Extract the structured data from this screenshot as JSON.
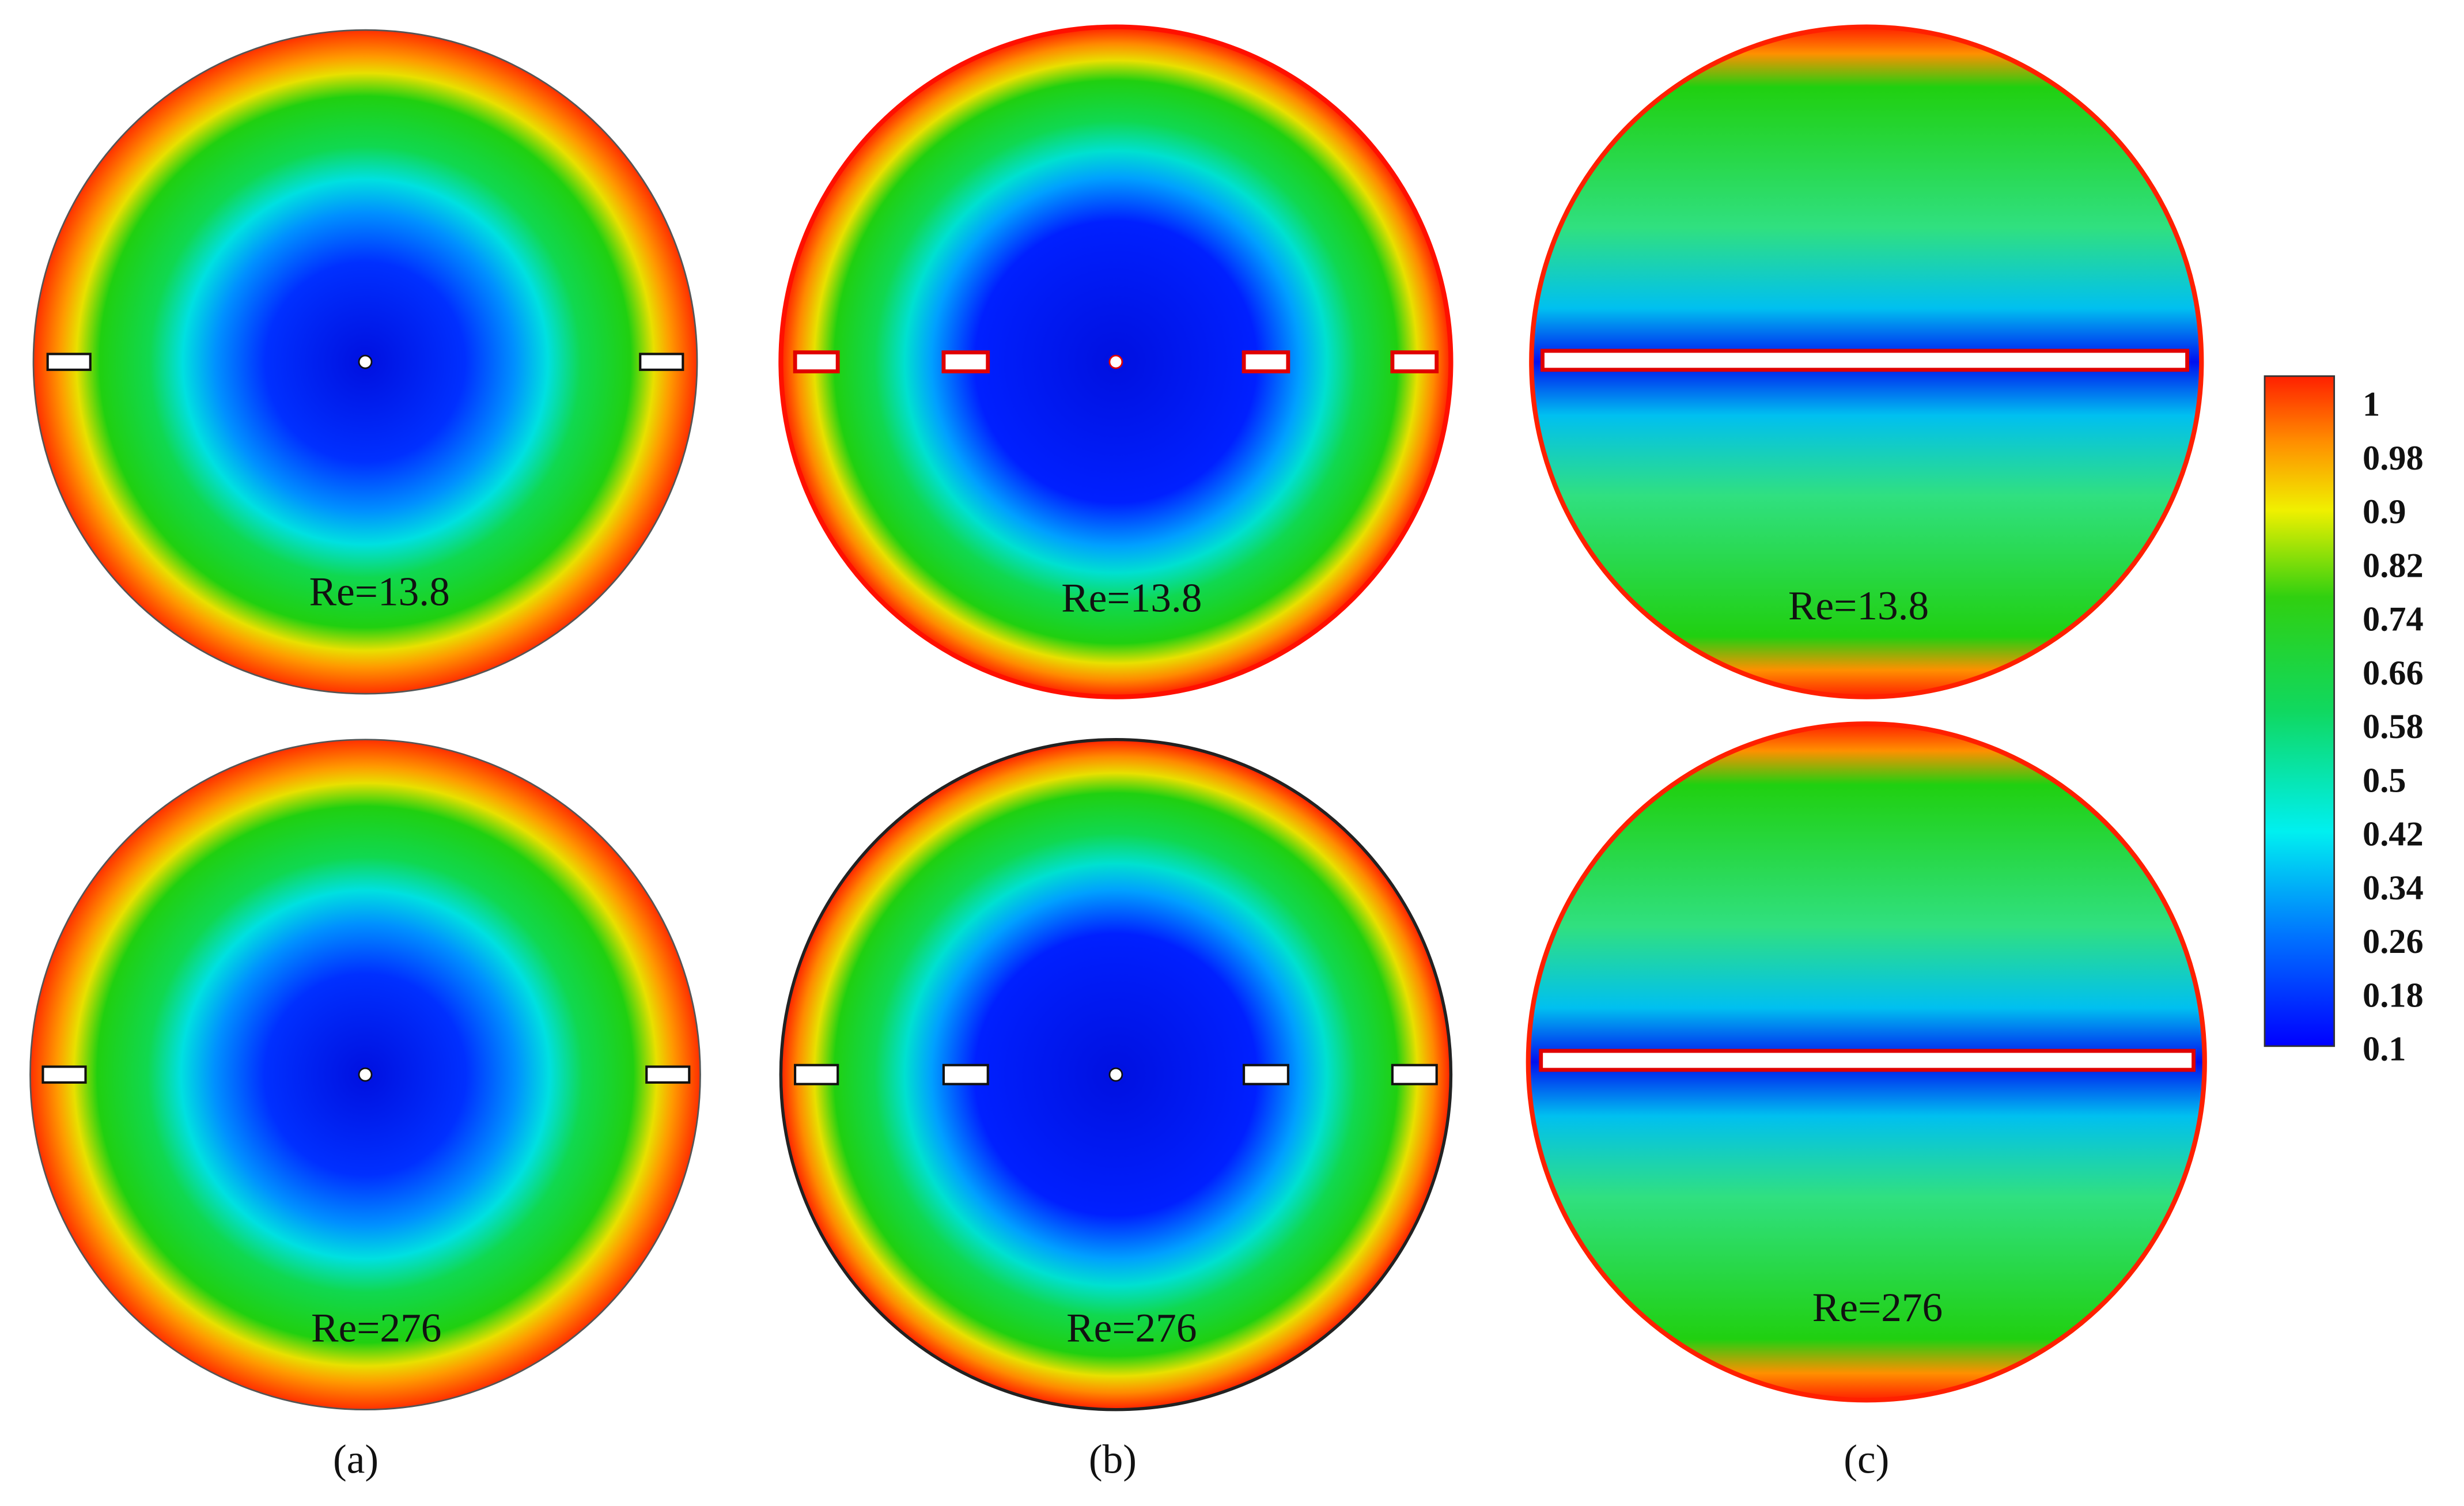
{
  "panels": [
    {
      "caption": "(a)",
      "top_label": "Re=13.8",
      "bottom_label": "Re=276"
    },
    {
      "caption": "(b)",
      "top_label": "Re=13.8",
      "bottom_label": "Re=276"
    },
    {
      "caption": "(c)",
      "top_label": "Re=13.8",
      "bottom_label": "Re=276"
    }
  ],
  "colorbar": {
    "labels": [
      "1",
      "0.98",
      "0.9",
      "0.82",
      "0.74",
      "0.66",
      "0.58",
      "0.5",
      "0.42",
      "0.34",
      "0.26",
      "0.18",
      "0.1"
    ]
  }
}
